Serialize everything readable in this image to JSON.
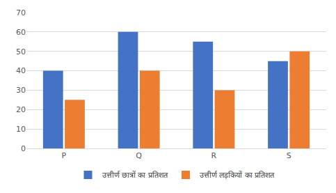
{
  "chart_data": {
    "type": "bar",
    "categories": [
      "P",
      "Q",
      "R",
      "S"
    ],
    "series": [
      {
        "name": "उत्तीर्ण छात्रों का प्रतिशत",
        "color": "#4472c4",
        "values": [
          40,
          60,
          55,
          45
        ]
      },
      {
        "name": "उत्तीर्ण लड़कियों का प्रतिशत",
        "color": "#ed7d31",
        "values": [
          25,
          40,
          30,
          50
        ]
      }
    ],
    "ylim": [
      0,
      70
    ],
    "yticks": [
      0,
      10,
      20,
      30,
      40,
      50,
      60,
      70
    ],
    "grid": true,
    "legend": "bottom"
  }
}
